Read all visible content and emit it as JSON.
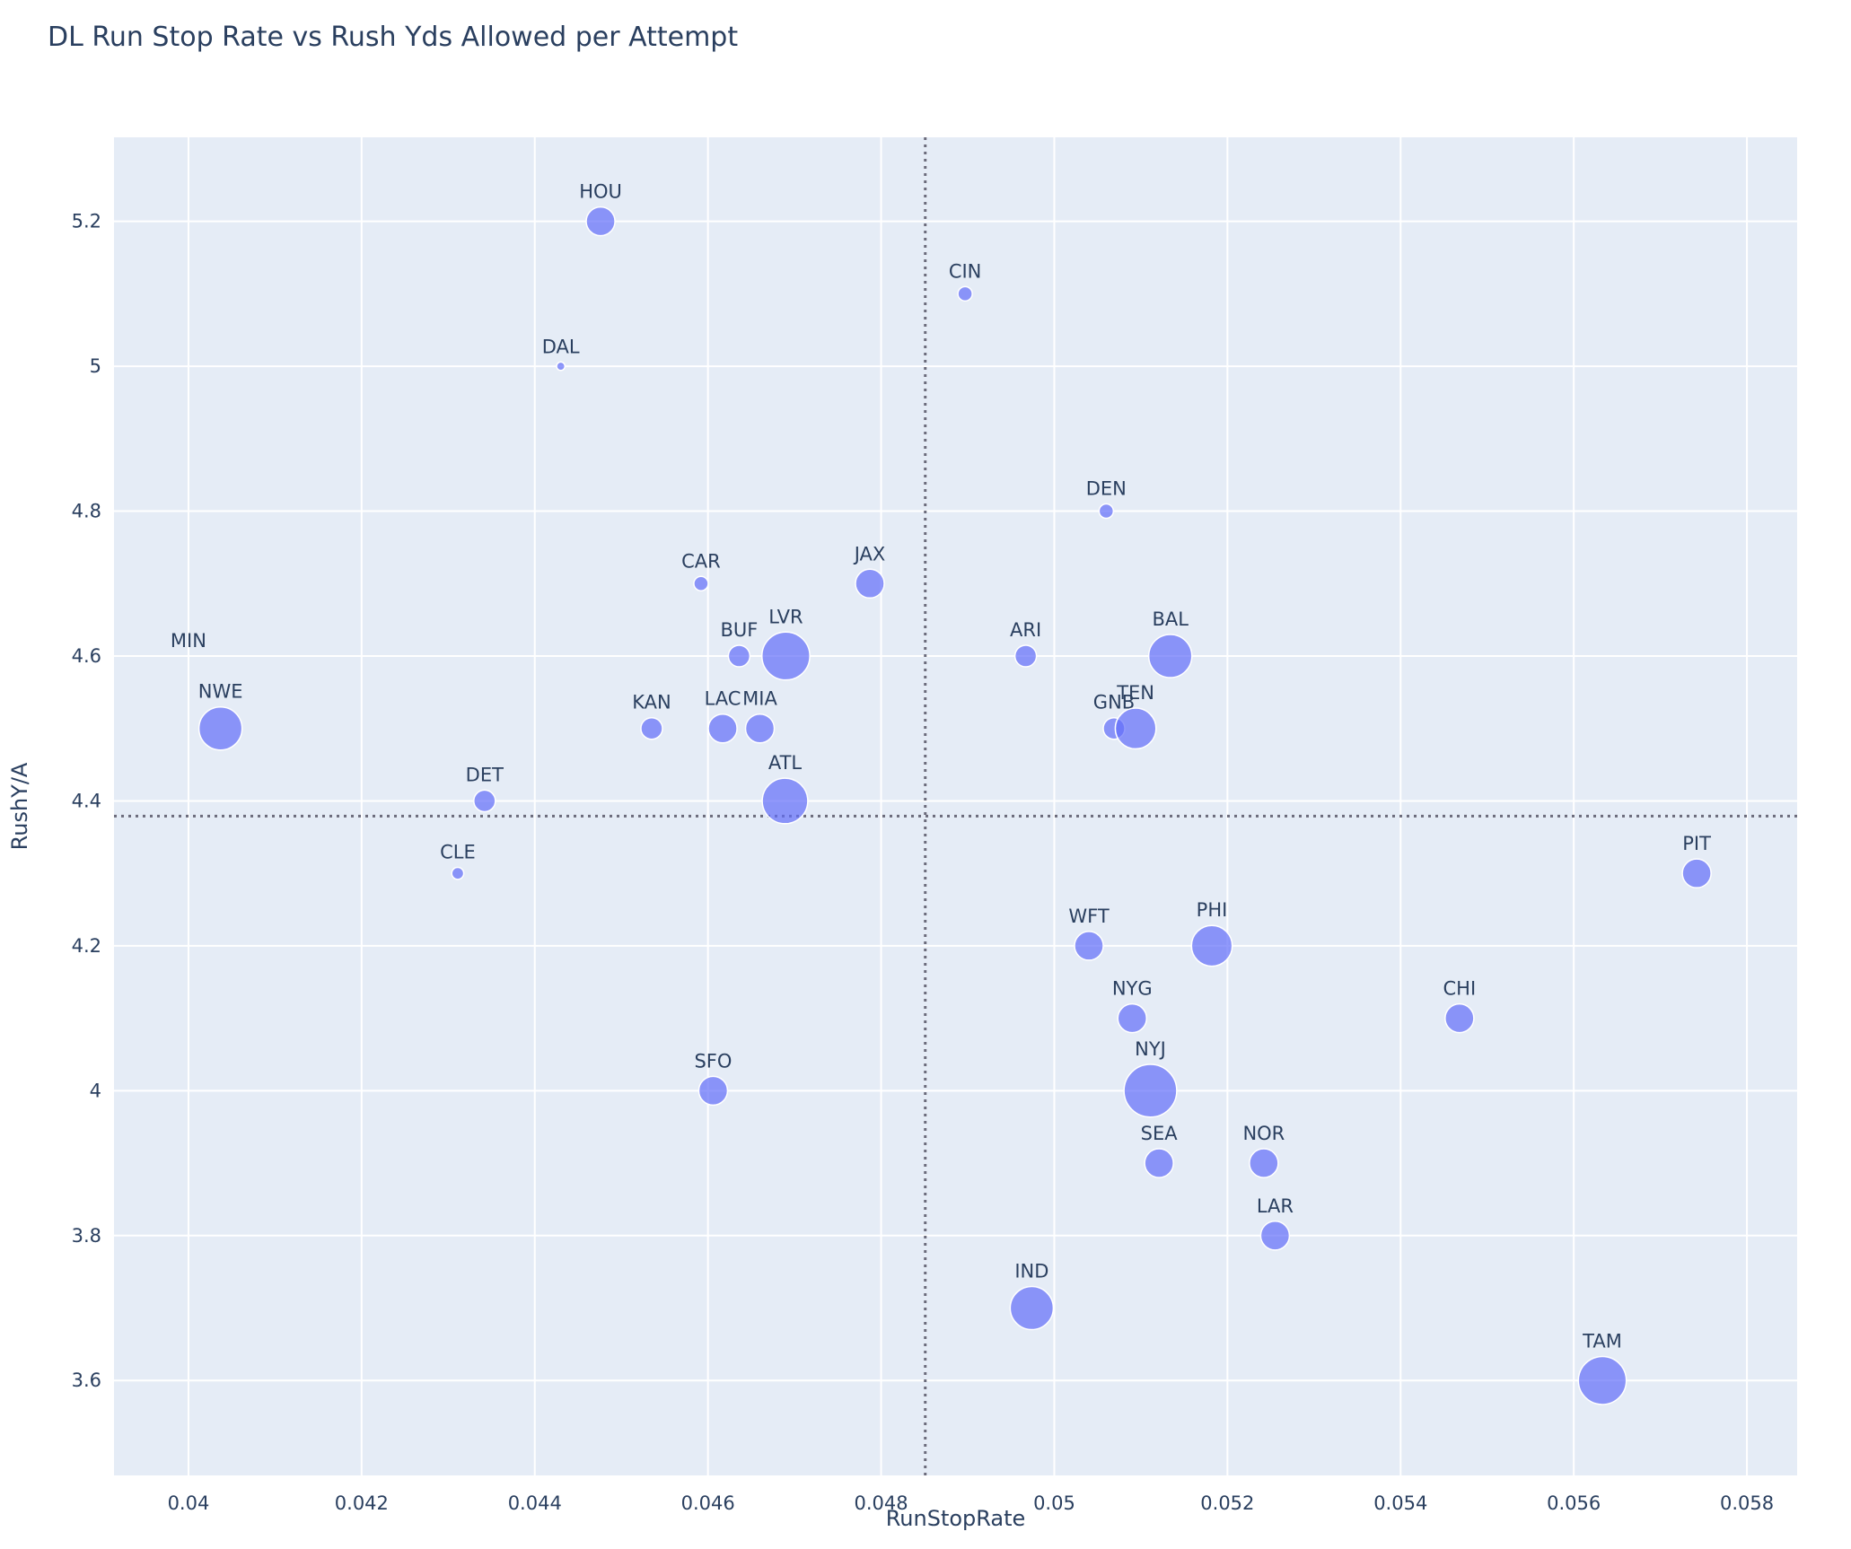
{
  "chart_data": {
    "type": "scatter",
    "title": "DL Run Stop Rate vs Rush Yds Allowed per Attempt",
    "xlabel": "RunStopRate",
    "ylabel": "RushY/A",
    "xlim": [
      0.03914,
      0.05858
    ],
    "ylim": [
      3.469,
      5.316
    ],
    "x_ticks": [
      0.04,
      0.042,
      0.044,
      0.046,
      0.048,
      0.05,
      0.052,
      0.054,
      0.056,
      0.058
    ],
    "x_tick_labels": [
      "0.04",
      "0.042",
      "0.044",
      "0.046",
      "0.048",
      "0.05",
      "0.052",
      "0.054",
      "0.056",
      "0.058"
    ],
    "y_ticks": [
      3.6,
      3.8,
      4.0,
      4.2,
      4.4,
      4.6,
      4.8,
      5.0,
      5.2
    ],
    "y_tick_labels": [
      "3.6",
      "3.8",
      "4",
      "4.2",
      "4.4",
      "4.6",
      "4.8",
      "5",
      "5.2"
    ],
    "grid": true,
    "reference_lines": {
      "x": 0.04851,
      "y": 4.379
    },
    "colors": {
      "marker": "#636efa",
      "plot_bg": "#e5ecf6",
      "grid": "#ffffff",
      "ref_line": "#6b6b7b",
      "text": "#2a3f5f"
    },
    "points": [
      {
        "team": "HOU",
        "x": 0.04476,
        "y": 5.2,
        "size": 24
      },
      {
        "team": "CIN",
        "x": 0.04897,
        "y": 5.1,
        "size": 12
      },
      {
        "team": "DAL",
        "x": 0.0443,
        "y": 5.0,
        "size": 7
      },
      {
        "team": "DEN",
        "x": 0.0506,
        "y": 4.8,
        "size": 12
      },
      {
        "team": "CAR",
        "x": 0.04592,
        "y": 4.7,
        "size": 12
      },
      {
        "team": "JAX",
        "x": 0.04787,
        "y": 4.7,
        "size": 24
      },
      {
        "team": "BUF",
        "x": 0.04636,
        "y": 4.6,
        "size": 18
      },
      {
        "team": "LVR",
        "x": 0.0469,
        "y": 4.6,
        "size": 40
      },
      {
        "team": "ARI",
        "x": 0.04967,
        "y": 4.6,
        "size": 18
      },
      {
        "team": "BAL",
        "x": 0.05134,
        "y": 4.6,
        "size": 36
      },
      {
        "team": "MIN",
        "x": 0.04,
        "y": 4.6,
        "size": 0
      },
      {
        "team": "NWE",
        "x": 0.04037,
        "y": 4.5,
        "size": 36
      },
      {
        "team": "KAN",
        "x": 0.04535,
        "y": 4.5,
        "size": 18
      },
      {
        "team": "LAC",
        "x": 0.04617,
        "y": 4.5,
        "size": 24
      },
      {
        "team": "MIA",
        "x": 0.0466,
        "y": 4.5,
        "size": 24
      },
      {
        "team": "GNB",
        "x": 0.05069,
        "y": 4.5,
        "size": 18
      },
      {
        "team": "TEN",
        "x": 0.05094,
        "y": 4.5,
        "size": 34
      },
      {
        "team": "DET",
        "x": 0.04342,
        "y": 4.4,
        "size": 18
      },
      {
        "team": "ATL",
        "x": 0.04689,
        "y": 4.4,
        "size": 38
      },
      {
        "team": "CLE",
        "x": 0.04311,
        "y": 4.3,
        "size": 10
      },
      {
        "team": "PIT",
        "x": 0.05742,
        "y": 4.3,
        "size": 24
      },
      {
        "team": "WFT",
        "x": 0.0504,
        "y": 4.2,
        "size": 24
      },
      {
        "team": "PHI",
        "x": 0.05182,
        "y": 4.2,
        "size": 34
      },
      {
        "team": "NYG",
        "x": 0.0509,
        "y": 4.1,
        "size": 24
      },
      {
        "team": "CHI",
        "x": 0.05468,
        "y": 4.1,
        "size": 24
      },
      {
        "team": "SFO",
        "x": 0.04606,
        "y": 4.0,
        "size": 24
      },
      {
        "team": "NYJ",
        "x": 0.05111,
        "y": 4.0,
        "size": 44
      },
      {
        "team": "SEA",
        "x": 0.05121,
        "y": 3.9,
        "size": 24
      },
      {
        "team": "NOR",
        "x": 0.05242,
        "y": 3.9,
        "size": 24
      },
      {
        "team": "LAR",
        "x": 0.05255,
        "y": 3.8,
        "size": 24
      },
      {
        "team": "IND",
        "x": 0.04974,
        "y": 3.7,
        "size": 36
      },
      {
        "team": "TAM",
        "x": 0.05633,
        "y": 3.6,
        "size": 40
      }
    ]
  }
}
